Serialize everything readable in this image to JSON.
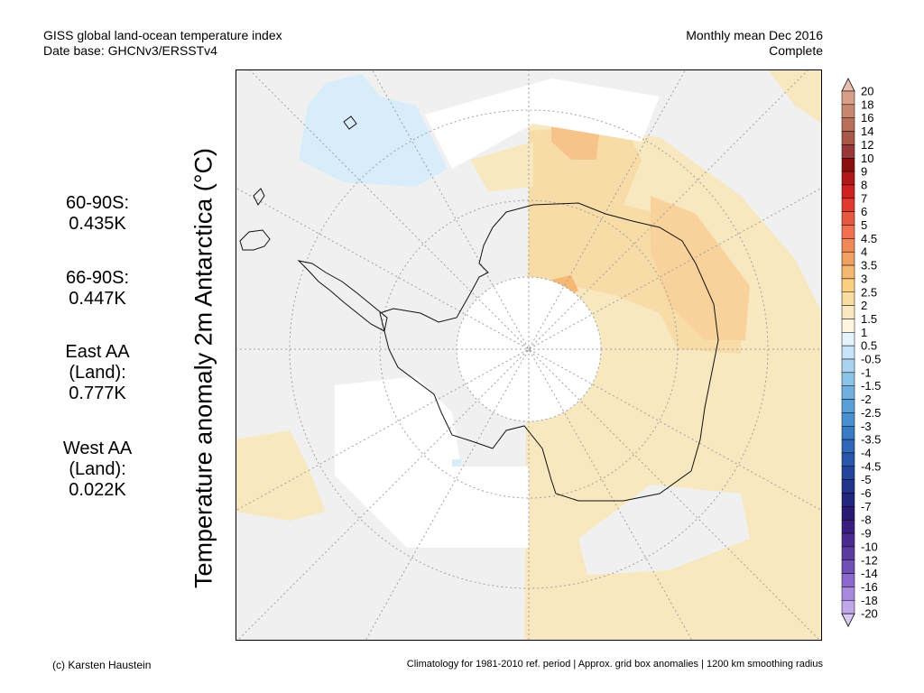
{
  "header": {
    "left_line1": "GISS global land-ocean temperature index",
    "left_line2": "Date base: GHCNv3/ERSSTv4",
    "right_line1": "Monthly mean Dec 2016",
    "right_line2": "Complete"
  },
  "ylabel": "Temperature anomaly 2m Antarctica (°C)",
  "stats": [
    {
      "lines": [
        "60-90S:",
        "0.435K"
      ]
    },
    {
      "lines": [
        "66-90S:",
        "0.447K"
      ]
    },
    {
      "lines": [
        "East AA",
        "(Land):",
        "0.777K"
      ]
    },
    {
      "lines": [
        "West AA",
        "(Land):",
        "0.022K"
      ]
    }
  ],
  "footer": {
    "left": "(c) Karsten Haustein",
    "right": "Climatology for 1981-2010 ref. period | Approx. grid box anomalies | 1200 km smoothing radius"
  },
  "colorbar": {
    "labels": [
      "20",
      "18",
      "16",
      "14",
      "12",
      "10",
      "9",
      "8",
      "7",
      "6",
      "5",
      "4.5",
      "4",
      "3.5",
      "3",
      "2.5",
      "2",
      "1.5",
      "1",
      "0.5",
      "-0.5",
      "-1",
      "-1.5",
      "-2",
      "-2.5",
      "-3",
      "-3.5",
      "-4",
      "-4.5",
      "-5",
      "-6",
      "-7",
      "-8",
      "-9",
      "-10",
      "-12",
      "-14",
      "-16",
      "-18",
      "-20"
    ],
    "colors": [
      "#e8c0ac",
      "#d8a088",
      "#c88870",
      "#b87058",
      "#a85848",
      "#983838",
      "#8a1010",
      "#b01818",
      "#d02020",
      "#e03a30",
      "#e85840",
      "#f07050",
      "#f08858",
      "#f0a060",
      "#f4b870",
      "#f8d080",
      "#f8dca0",
      "#fae8c0",
      "#fff5e0",
      "#e6f2fc",
      "#c8e4f8",
      "#a8d4f0",
      "#8cc4e8",
      "#70b0e0",
      "#5aa0d8",
      "#4890d0",
      "#3a7cc4",
      "#3268b8",
      "#2a56aa",
      "#24449c",
      "#22348c",
      "#22267e",
      "#2a1a74",
      "#3a1e80",
      "#4a2c90",
      "#5a3ca0",
      "#7050b8",
      "#8a68cc",
      "#a888dc",
      "#c0a8e8",
      "#d8c8f4"
    ]
  },
  "map": {
    "colors": {
      "no_data": "#ffffff",
      "ocean_neutral": "#f0f0f0",
      "light_blue": "#d8ecfa",
      "pale_orange": "#f8e8c0",
      "light_orange": "#f8dca8",
      "orange": "#f8c890",
      "strong_orange": "#f6b872"
    }
  }
}
